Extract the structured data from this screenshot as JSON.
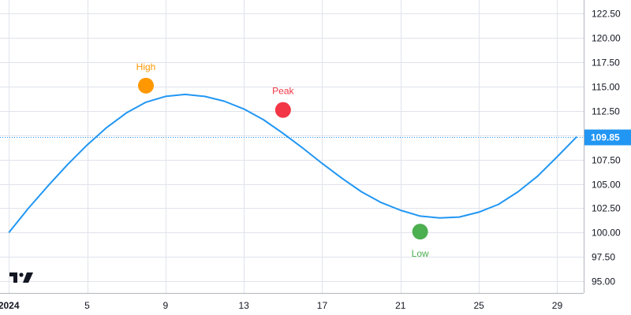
{
  "chart_data": {
    "type": "line",
    "x_ticks": [
      "2024",
      "5",
      "9",
      "13",
      "17",
      "21",
      "25",
      "29"
    ],
    "y_ticks": [
      "95.00",
      "97.50",
      "100.00",
      "102.50",
      "105.00",
      "107.50",
      "110.00",
      "112.50",
      "115.00",
      "117.50",
      "120.00",
      "122.50"
    ],
    "ylim": [
      93.8,
      123.9
    ],
    "xlim": [
      0.55,
      30.35
    ],
    "grid": true,
    "series": [
      {
        "color": "#2196f3",
        "x": [
          1,
          2,
          3,
          4,
          5,
          6,
          7,
          8,
          9,
          10,
          11,
          12,
          13,
          14,
          15,
          16,
          17,
          18,
          19,
          20,
          21,
          22,
          23,
          24,
          25,
          26,
          27,
          28,
          29,
          30
        ],
        "values": [
          100.0,
          102.5,
          104.8,
          107.0,
          109.0,
          110.8,
          112.3,
          113.4,
          114.0,
          114.2,
          114.0,
          113.5,
          112.7,
          111.6,
          110.2,
          108.7,
          107.1,
          105.6,
          104.2,
          103.1,
          102.3,
          101.7,
          101.5,
          101.6,
          102.1,
          102.9,
          104.2,
          105.8,
          107.8,
          109.85
        ]
      }
    ],
    "price_line": {
      "value": "109.85",
      "color": "#2196f3"
    },
    "markers": [
      {
        "label": "High",
        "x": 8,
        "y": 115.1,
        "color": "#ff9800",
        "label_position": "above"
      },
      {
        "label": "Peak",
        "x": 15,
        "y": 112.6,
        "color": "#f23645",
        "label_position": "above"
      },
      {
        "label": "Low",
        "x": 22,
        "y": 100.1,
        "color": "#4caf50",
        "label_position": "below"
      }
    ],
    "logo_icon": "tradingview-logo-icon"
  }
}
